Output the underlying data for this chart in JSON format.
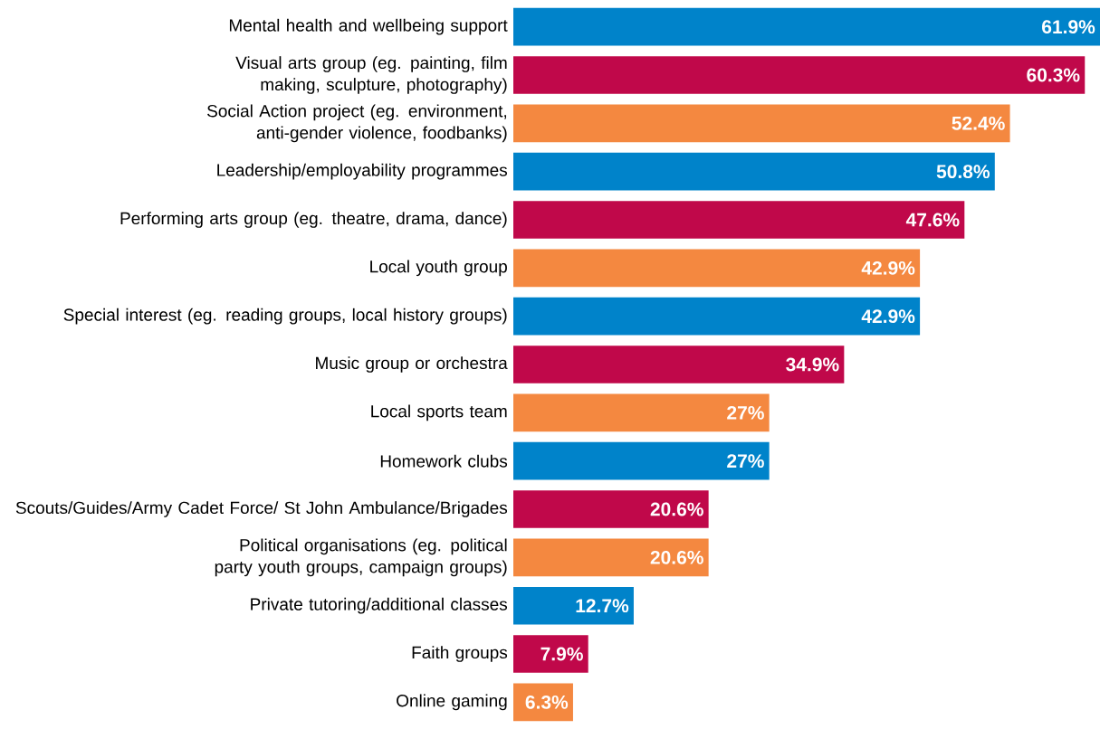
{
  "chart_data": {
    "type": "bar",
    "orientation": "horizontal",
    "categories": [
      "Mental health and wellbeing support",
      "Visual arts group (eg. painting, film making, sculpture, photography)",
      "Social Action project (eg. environment, anti-gender violence, foodbanks)",
      "Leadership/employability programmes",
      "Performing arts group (eg. theatre, drama, dance)",
      "Local youth group",
      "Special interest (eg. reading groups, local history groups)",
      "Music group or orchestra",
      "Local sports team",
      "Homework clubs",
      "Scouts/Guides/Army Cadet Force/ St John Ambulance/Brigades",
      "Political organisations (eg. political party youth groups, campaign groups)",
      "Private tutoring/additional classes",
      "Faith groups",
      "Online gaming"
    ],
    "values": [
      61.9,
      60.3,
      52.4,
      50.8,
      47.6,
      42.9,
      42.9,
      34.9,
      27,
      27,
      20.6,
      20.6,
      12.7,
      7.9,
      6.3
    ],
    "value_labels": [
      "61.9%",
      "60.3%",
      "52.4%",
      "50.8%",
      "47.6%",
      "42.9%",
      "42.9%",
      "34.9%",
      "27%",
      "27%",
      "20.6%",
      "20.6%",
      "12.7%",
      "7.9%",
      "6.3%"
    ],
    "colors": [
      "#0083ca",
      "#c0084a",
      "#f48840",
      "#0083ca",
      "#c0084a",
      "#f48840",
      "#0083ca",
      "#c0084a",
      "#f48840",
      "#0083ca",
      "#c0084a",
      "#f48840",
      "#0083ca",
      "#c0084a",
      "#f48840"
    ]
  }
}
